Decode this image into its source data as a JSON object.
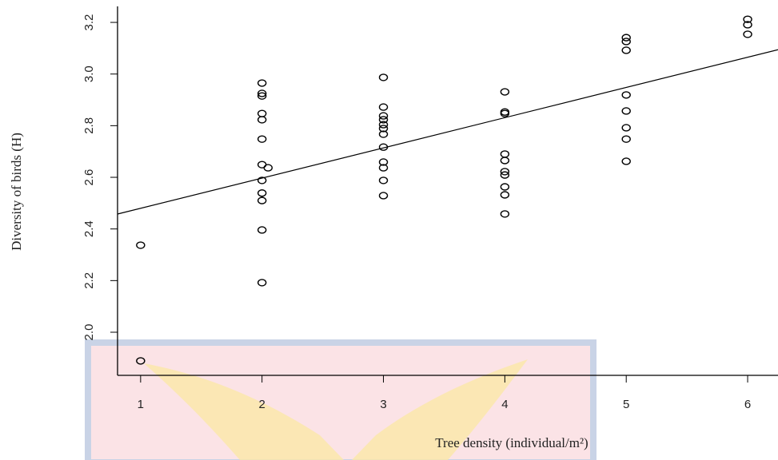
{
  "chart_data": {
    "type": "scatter",
    "x_label": "Tree density (individual/m²)",
    "y_label": "Diversity of birds (H)",
    "x": [
      1,
      1,
      2,
      2,
      2,
      2,
      2,
      2,
      2,
      2.05,
      2,
      2,
      2,
      2,
      2,
      3,
      3,
      3,
      3,
      3,
      3,
      3,
      3,
      3,
      3,
      3,
      3,
      4,
      4,
      4,
      4,
      4,
      4,
      4,
      4,
      4,
      4,
      5,
      5,
      5,
      5,
      5,
      5,
      5,
      5,
      6,
      6,
      6
    ],
    "values": [
      2.337,
      1.889,
      2.965,
      2.925,
      2.915,
      2.847,
      2.823,
      2.748,
      2.649,
      2.637,
      2.588,
      2.539,
      2.51,
      2.396,
      2.192,
      2.987,
      2.872,
      2.838,
      2.823,
      2.804,
      2.789,
      2.767,
      2.717,
      2.659,
      2.637,
      2.588,
      2.529,
      2.931,
      2.853,
      2.847,
      2.69,
      2.665,
      2.622,
      2.609,
      2.563,
      2.532,
      2.458,
      3.141,
      3.126,
      3.092,
      2.919,
      2.857,
      2.792,
      2.748,
      2.662,
      3.212,
      3.191,
      3.154
    ],
    "fit_line": {
      "intercept": 2.363,
      "slope": 0.117
    },
    "xlim": [
      0.81,
      6.25
    ],
    "ylim": [
      1.833,
      3.262
    ],
    "xticks": [
      1,
      2,
      3,
      4,
      5,
      6
    ],
    "yticks": [
      {
        "value": 2,
        "label": "2.0"
      },
      2.2,
      2.4,
      2.6,
      2.8,
      {
        "value": 3,
        "label": "3.0"
      },
      3.2
    ]
  }
}
